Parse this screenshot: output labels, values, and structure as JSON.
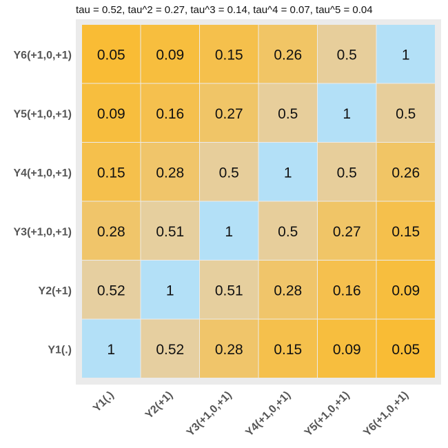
{
  "chart_data": {
    "type": "heatmap",
    "title": "tau = 0.52, tau^2 = 0.27, tau^3 = 0.14, tau^4 = 0.07, tau^5 = 0.04",
    "x_labels": [
      "Y1(.)",
      "Y2(+1)",
      "Y3(+1,0,+1)",
      "Y4(+1,0,+1)",
      "Y5(+1,0,+1)",
      "Y6(+1,0,+1)"
    ],
    "y_labels_top_to_bottom": [
      "Y6(+1,0,+1)",
      "Y5(+1,0,+1)",
      "Y4(+1,0,+1)",
      "Y3(+1,0,+1)",
      "Y2(+1)",
      "Y1(.)"
    ],
    "values_top_to_bottom": [
      [
        "0.05",
        "0.09",
        "0.15",
        "0.26",
        "0.5",
        "1"
      ],
      [
        "0.09",
        "0.16",
        "0.27",
        "0.5",
        "1",
        "0.5"
      ],
      [
        "0.15",
        "0.28",
        "0.5",
        "1",
        "0.5",
        "0.26"
      ],
      [
        "0.28",
        "0.51",
        "1",
        "0.5",
        "0.27",
        "0.15"
      ],
      [
        "0.52",
        "1",
        "0.51",
        "0.28",
        "0.16",
        "0.09"
      ],
      [
        "1",
        "0.52",
        "0.28",
        "0.15",
        "0.09",
        "0.05"
      ]
    ],
    "colors": {
      "diagonal": "#b3e0f7",
      "high": "#e6cfa0",
      "low": "#fbba2a",
      "panel_background": "#ebebeb",
      "grid_line": "#ffffff"
    }
  }
}
